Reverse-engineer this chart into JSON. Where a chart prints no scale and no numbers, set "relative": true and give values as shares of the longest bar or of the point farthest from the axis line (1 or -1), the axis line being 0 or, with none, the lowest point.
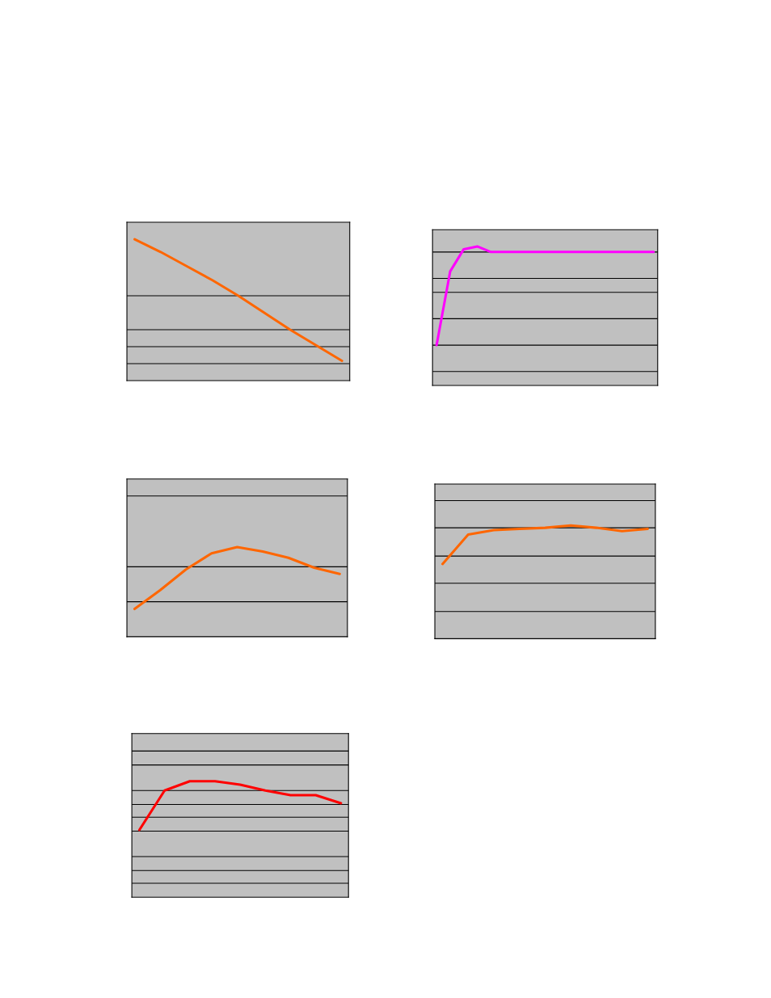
{
  "chart_data": [
    {
      "type": "line",
      "relative": true,
      "grid": false,
      "categories": [
        null,
        null,
        null,
        null,
        null,
        null,
        null,
        null,
        null
      ],
      "ref_lines": [
        {
          "axis": "y",
          "value": 0.6,
          "color": "#000000"
        },
        {
          "axis": "y",
          "value": 0.36,
          "color": "#000000"
        },
        {
          "axis": "y",
          "value": 0.24,
          "color": "#000000"
        },
        {
          "axis": "y",
          "value": 0.12,
          "color": "#000000"
        }
      ],
      "series": [
        {
          "color": "#ff6600",
          "values": [
            1.0,
            0.91,
            0.81,
            0.71,
            0.6,
            0.48,
            0.36,
            0.25,
            0.14
          ]
        }
      ]
    },
    {
      "type": "line",
      "relative": true,
      "grid": false,
      "categories": [
        null,
        null,
        null,
        null,
        null,
        null,
        null,
        null,
        null,
        null,
        null,
        null,
        null,
        null,
        null,
        null,
        null
      ],
      "ref_lines": [
        {
          "axis": "y",
          "value": 0.96,
          "color": "#000000"
        },
        {
          "axis": "y",
          "value": 0.77,
          "color": "#000000"
        },
        {
          "axis": "y",
          "value": 0.67,
          "color": "#000000"
        },
        {
          "axis": "y",
          "value": 0.48,
          "color": "#000000"
        },
        {
          "axis": "y",
          "value": 0.29,
          "color": "#000000"
        },
        {
          "axis": "y",
          "value": 0.1,
          "color": "#000000"
        }
      ],
      "series": [
        {
          "color": "#ff00ff",
          "values": [
            0.29,
            0.82,
            0.98,
            1.0,
            0.96,
            0.96,
            0.96,
            0.96,
            0.96,
            0.96,
            0.96,
            0.96,
            0.96,
            0.96,
            0.96,
            0.96,
            0.96
          ]
        }
      ]
    },
    {
      "type": "line",
      "relative": true,
      "grid": false,
      "categories": [
        null,
        null,
        null,
        null,
        null,
        null,
        null,
        null,
        null
      ],
      "ref_lines": [
        {
          "axis": "y",
          "value": 1.57,
          "color": "#000000"
        },
        {
          "axis": "y",
          "value": 0.78,
          "color": "#000000"
        },
        {
          "axis": "y",
          "value": 0.39,
          "color": "#000000"
        }
      ],
      "series": [
        {
          "color": "#ff6600",
          "values": [
            0.31,
            0.52,
            0.75,
            0.93,
            1.0,
            0.95,
            0.88,
            0.77,
            0.7
          ]
        }
      ]
    },
    {
      "type": "line",
      "relative": true,
      "grid": false,
      "categories": [
        null,
        null,
        null,
        null,
        null,
        null,
        null,
        null,
        null
      ],
      "ref_lines": [
        {
          "axis": "y",
          "value": 1.22,
          "color": "#000000"
        },
        {
          "axis": "y",
          "value": 0.98,
          "color": "#000000"
        },
        {
          "axis": "y",
          "value": 0.73,
          "color": "#000000"
        },
        {
          "axis": "y",
          "value": 0.49,
          "color": "#000000"
        },
        {
          "axis": "y",
          "value": 0.24,
          "color": "#000000"
        }
      ],
      "series": [
        {
          "color": "#ff6600",
          "values": [
            0.66,
            0.92,
            0.96,
            0.97,
            0.98,
            1.0,
            0.98,
            0.95,
            0.97
          ]
        }
      ]
    },
    {
      "type": "line",
      "relative": true,
      "grid": false,
      "categories": [
        null,
        null,
        null,
        null,
        null,
        null,
        null,
        null,
        null
      ],
      "ref_lines": [
        {
          "axis": "y",
          "value": 1.26,
          "color": "#000000"
        },
        {
          "axis": "y",
          "value": 1.14,
          "color": "#000000"
        },
        {
          "axis": "y",
          "value": 0.92,
          "color": "#000000"
        },
        {
          "axis": "y",
          "value": 0.8,
          "color": "#000000"
        },
        {
          "axis": "y",
          "value": 0.69,
          "color": "#000000"
        },
        {
          "axis": "y",
          "value": 0.57,
          "color": "#000000"
        },
        {
          "axis": "y",
          "value": 0.35,
          "color": "#000000"
        },
        {
          "axis": "y",
          "value": 0.23,
          "color": "#000000"
        },
        {
          "axis": "y",
          "value": 0.12,
          "color": "#000000"
        }
      ],
      "series": [
        {
          "color": "#ff0000",
          "values": [
            0.58,
            0.92,
            1.0,
            1.0,
            0.97,
            0.92,
            0.88,
            0.88,
            0.81
          ]
        }
      ]
    }
  ]
}
